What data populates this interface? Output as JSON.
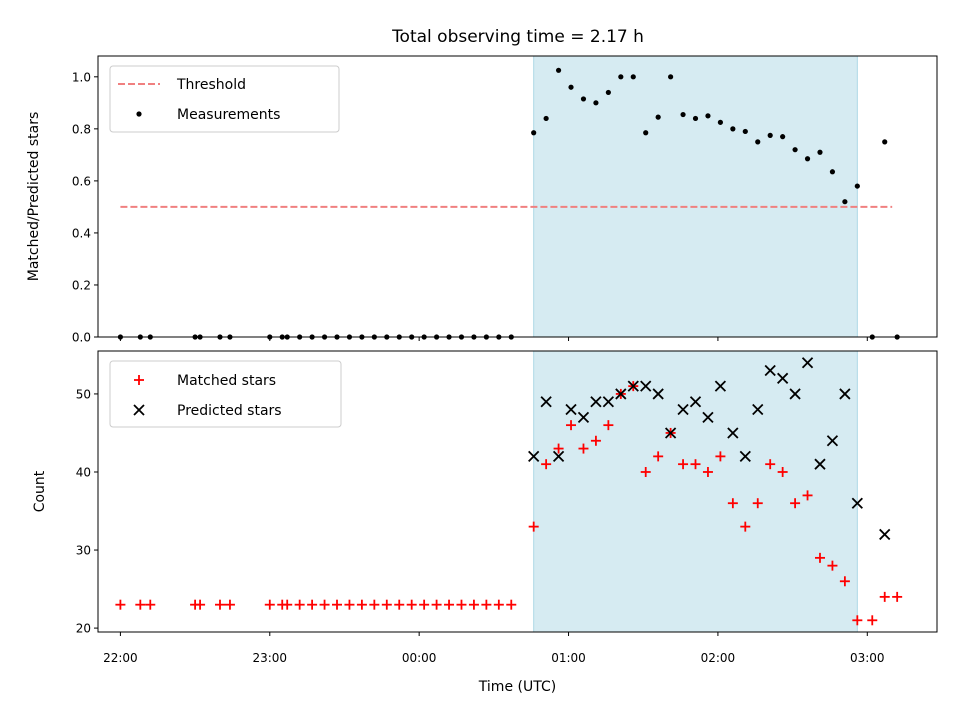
{
  "colors": {
    "threshold": "#f08080",
    "measurements": "#000000",
    "matched": "#ff0000",
    "predicted": "#000000",
    "observing_window": "#add8e6"
  },
  "chart_data": [
    {
      "type": "scatter",
      "title": "Total observing time = 2.17 h",
      "xlabel": "",
      "ylabel": "Matched/Predicted stars",
      "ylim": [
        0,
        1.08
      ],
      "yticks": [
        "0.0",
        "0.2",
        "0.4",
        "0.6",
        "0.8",
        "1.0"
      ],
      "xlim": [
        "21:51",
        "03:28"
      ],
      "legend_position": "top-left",
      "threshold": {
        "name": "Threshold",
        "value": 0.5,
        "x_range": [
          "22:00",
          "03:10"
        ],
        "style": "dashed"
      },
      "observing_window": [
        "00:46",
        "02:56"
      ],
      "series": [
        {
          "name": "Measurements",
          "points": [
            [
              "22:00",
              0
            ],
            [
              "22:08",
              0
            ],
            [
              "22:12",
              0
            ],
            [
              "22:30",
              0
            ],
            [
              "22:32",
              0
            ],
            [
              "22:40",
              0
            ],
            [
              "22:44",
              0
            ],
            [
              "23:00",
              0
            ],
            [
              "23:05",
              0
            ],
            [
              "23:07",
              0
            ],
            [
              "23:12",
              0
            ],
            [
              "23:17",
              0
            ],
            [
              "23:22",
              0
            ],
            [
              "23:27",
              0
            ],
            [
              "23:32",
              0
            ],
            [
              "23:37",
              0
            ],
            [
              "23:42",
              0
            ],
            [
              "23:47",
              0
            ],
            [
              "23:52",
              0
            ],
            [
              "23:57",
              0
            ],
            [
              "00:02",
              0
            ],
            [
              "00:07",
              0
            ],
            [
              "00:12",
              0
            ],
            [
              "00:17",
              0
            ],
            [
              "00:22",
              0
            ],
            [
              "00:27",
              0
            ],
            [
              "00:32",
              0
            ],
            [
              "00:37",
              0
            ],
            [
              "00:46",
              0.785
            ],
            [
              "00:51",
              0.84
            ],
            [
              "00:56",
              1.025
            ],
            [
              "01:01",
              0.96
            ],
            [
              "01:06",
              0.915
            ],
            [
              "01:11",
              0.9
            ],
            [
              "01:16",
              0.94
            ],
            [
              "01:21",
              1.0
            ],
            [
              "01:26",
              1.0
            ],
            [
              "01:31",
              0.785
            ],
            [
              "01:36",
              0.845
            ],
            [
              "01:41",
              1.0
            ],
            [
              "01:46",
              0.855
            ],
            [
              "01:51",
              0.84
            ],
            [
              "01:56",
              0.85
            ],
            [
              "02:01",
              0.825
            ],
            [
              "02:06",
              0.8
            ],
            [
              "02:11",
              0.79
            ],
            [
              "02:16",
              0.75
            ],
            [
              "02:21",
              0.775
            ],
            [
              "02:26",
              0.77
            ],
            [
              "02:31",
              0.72
            ],
            [
              "02:36",
              0.685
            ],
            [
              "02:41",
              0.71
            ],
            [
              "02:46",
              0.635
            ],
            [
              "02:51",
              0.52
            ],
            [
              "02:56",
              0.58
            ],
            [
              "03:02",
              0
            ],
            [
              "03:07",
              0.75
            ],
            [
              "03:12",
              0
            ]
          ]
        }
      ]
    },
    {
      "type": "scatter",
      "title": "",
      "xlabel": "Time (UTC)",
      "ylabel": "Count",
      "ylim": [
        19.5,
        55.5
      ],
      "yticks": [
        "20",
        "30",
        "40",
        "50"
      ],
      "xticks": [
        "22:00",
        "23:00",
        "00:00",
        "01:00",
        "02:00",
        "03:00"
      ],
      "xlim": [
        "21:51",
        "03:28"
      ],
      "legend_position": "top-left",
      "observing_window": [
        "00:46",
        "02:56"
      ],
      "series": [
        {
          "name": "Matched stars",
          "marker": "plus",
          "points": [
            [
              "22:00",
              23
            ],
            [
              "22:08",
              23
            ],
            [
              "22:12",
              23
            ],
            [
              "22:30",
              23
            ],
            [
              "22:32",
              23
            ],
            [
              "22:40",
              23
            ],
            [
              "22:44",
              23
            ],
            [
              "23:00",
              23
            ],
            [
              "23:05",
              23
            ],
            [
              "23:07",
              23
            ],
            [
              "23:12",
              23
            ],
            [
              "23:17",
              23
            ],
            [
              "23:22",
              23
            ],
            [
              "23:27",
              23
            ],
            [
              "23:32",
              23
            ],
            [
              "23:37",
              23
            ],
            [
              "23:42",
              23
            ],
            [
              "23:47",
              23
            ],
            [
              "23:52",
              23
            ],
            [
              "23:57",
              23
            ],
            [
              "00:02",
              23
            ],
            [
              "00:07",
              23
            ],
            [
              "00:12",
              23
            ],
            [
              "00:17",
              23
            ],
            [
              "00:22",
              23
            ],
            [
              "00:27",
              23
            ],
            [
              "00:32",
              23
            ],
            [
              "00:37",
              23
            ],
            [
              "00:46",
              33
            ],
            [
              "00:51",
              41
            ],
            [
              "00:56",
              43
            ],
            [
              "01:01",
              46
            ],
            [
              "01:06",
              43
            ],
            [
              "01:11",
              44
            ],
            [
              "01:16",
              46
            ],
            [
              "01:21",
              50
            ],
            [
              "01:26",
              51
            ],
            [
              "01:31",
              40
            ],
            [
              "01:36",
              42
            ],
            [
              "01:41",
              45
            ],
            [
              "01:46",
              41
            ],
            [
              "01:51",
              41
            ],
            [
              "01:56",
              40
            ],
            [
              "02:01",
              42
            ],
            [
              "02:06",
              36
            ],
            [
              "02:11",
              33
            ],
            [
              "02:16",
              36
            ],
            [
              "02:21",
              41
            ],
            [
              "02:26",
              40
            ],
            [
              "02:31",
              36
            ],
            [
              "02:36",
              37
            ],
            [
              "02:41",
              29
            ],
            [
              "02:46",
              28
            ],
            [
              "02:51",
              26
            ],
            [
              "02:56",
              21
            ],
            [
              "03:02",
              21
            ],
            [
              "03:07",
              24
            ],
            [
              "03:12",
              24
            ]
          ]
        },
        {
          "name": "Predicted stars",
          "marker": "x",
          "points": [
            [
              "00:46",
              42
            ],
            [
              "00:51",
              49
            ],
            [
              "00:56",
              42
            ],
            [
              "01:01",
              48
            ],
            [
              "01:06",
              47
            ],
            [
              "01:11",
              49
            ],
            [
              "01:16",
              49
            ],
            [
              "01:21",
              50
            ],
            [
              "01:26",
              51
            ],
            [
              "01:31",
              51
            ],
            [
              "01:36",
              50
            ],
            [
              "01:41",
              45
            ],
            [
              "01:46",
              48
            ],
            [
              "01:51",
              49
            ],
            [
              "01:56",
              47
            ],
            [
              "02:01",
              51
            ],
            [
              "02:06",
              45
            ],
            [
              "02:11",
              42
            ],
            [
              "02:16",
              48
            ],
            [
              "02:21",
              53
            ],
            [
              "02:26",
              52
            ],
            [
              "02:31",
              50
            ],
            [
              "02:36",
              54
            ],
            [
              "02:41",
              41
            ],
            [
              "02:46",
              44
            ],
            [
              "02:51",
              50
            ],
            [
              "02:56",
              36
            ],
            [
              "03:07",
              32
            ]
          ]
        }
      ]
    }
  ]
}
